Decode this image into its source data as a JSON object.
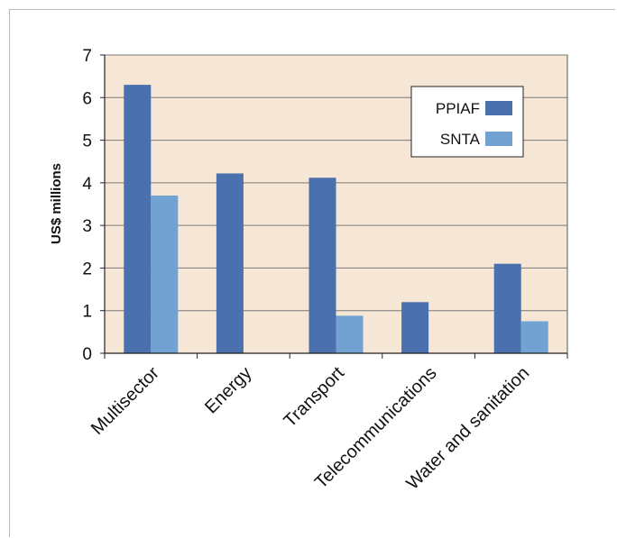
{
  "chart_data": {
    "type": "bar",
    "title": "",
    "xlabel": "",
    "ylabel": "US$ millions",
    "ylim": [
      0,
      7
    ],
    "yticks": [
      "0",
      "1",
      "2",
      "3",
      "4",
      "5",
      "6",
      "7"
    ],
    "categories": [
      "Multisector",
      "Energy",
      "Transport",
      "Telecommunications",
      "Water and sanitation"
    ],
    "series": [
      {
        "name": "PPIAF",
        "color": "#4a70ad",
        "values": [
          6.3,
          4.22,
          4.12,
          1.2,
          2.1
        ]
      },
      {
        "name": "SNTA",
        "color": "#71a2d1",
        "values": [
          3.7,
          0,
          0.88,
          0,
          0.75
        ]
      }
    ],
    "grid": true,
    "legend": "top-right",
    "plot_background": "#f5e6d6"
  }
}
